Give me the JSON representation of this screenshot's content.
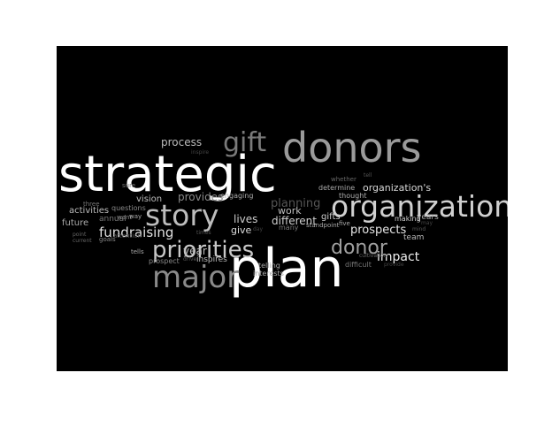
{
  "colors": {
    "background": "#000000",
    "page": "#ffffff"
  },
  "words": [
    {
      "text": "strategic",
      "color": "#ffffff"
    },
    {
      "text": "plan",
      "color": "#ffffff"
    },
    {
      "text": "donors",
      "color": "#9a9a9a"
    },
    {
      "text": "organization",
      "color": "#d0d0d0"
    },
    {
      "text": "story",
      "color": "#bdbdbd"
    },
    {
      "text": "priorities",
      "color": "#c8c8c8"
    },
    {
      "text": "major",
      "color": "#8a8a8a"
    },
    {
      "text": "gift",
      "color": "#7a7a7a"
    },
    {
      "text": "donor",
      "color": "#a0a0a0"
    },
    {
      "text": "fundraising",
      "color": "#e0e0e0"
    },
    {
      "text": "prospects",
      "color": "#e6e6e6"
    },
    {
      "text": "impact",
      "color": "#f0f0f0"
    },
    {
      "text": "planning",
      "color": "#555555"
    },
    {
      "text": "organization's",
      "color": "#d8d8d8"
    },
    {
      "text": "process",
      "color": "#bbbbbb"
    },
    {
      "text": "provides",
      "color": "#888888"
    },
    {
      "text": "year",
      "color": "#bbbbbb"
    },
    {
      "text": "lives",
      "color": "#cccccc"
    },
    {
      "text": "give",
      "color": "#dddddd"
    },
    {
      "text": "different",
      "color": "#cfcfcf"
    },
    {
      "text": "work",
      "color": "#bfbfbf"
    },
    {
      "text": "gifts",
      "color": "#cfcfcf"
    },
    {
      "text": "activities",
      "color": "#bbbbbb"
    },
    {
      "text": "future",
      "color": "#aaaaaa"
    },
    {
      "text": "vision",
      "color": "#bbbbbb"
    },
    {
      "text": "annual",
      "color": "#777777"
    },
    {
      "text": "inspires",
      "color": "#bdbdbd"
    },
    {
      "text": "team",
      "color": "#bbbbbb"
    },
    {
      "text": "years",
      "color": "#aaaaaa"
    },
    {
      "text": "making",
      "color": "#cccccc"
    },
    {
      "text": "engaging",
      "color": "#aaaaaa"
    },
    {
      "text": "determine",
      "color": "#aaaaaa"
    },
    {
      "text": "thought",
      "color": "#aaaaaa"
    },
    {
      "text": "whether",
      "color": "#666666"
    },
    {
      "text": "telling",
      "color": "#aaaaaa"
    },
    {
      "text": "interests",
      "color": "#aaaaaa"
    },
    {
      "text": "difficult",
      "color": "#777777"
    },
    {
      "text": "cultivation",
      "color": "#666666"
    },
    {
      "text": "prospect",
      "color": "#888888"
    },
    {
      "text": "questions",
      "color": "#888888"
    },
    {
      "text": "standpoint",
      "color": "#aaaaaa"
    },
    {
      "text": "five",
      "color": "#aaaaaa"
    },
    {
      "text": "many",
      "color": "#777777"
    },
    {
      "text": "three",
      "color": "#777777"
    },
    {
      "text": "want",
      "color": "#888888"
    },
    {
      "text": "way",
      "color": "#aaaaaa"
    },
    {
      "text": "sure",
      "color": "#777777"
    },
    {
      "text": "goals",
      "color": "#888888"
    },
    {
      "text": "point",
      "color": "#666666"
    },
    {
      "text": "current",
      "color": "#666666"
    },
    {
      "text": "tells",
      "color": "#aaaaaa"
    },
    {
      "text": "attention",
      "color": "#555555"
    },
    {
      "text": "drive",
      "color": "#555555"
    },
    {
      "text": "times",
      "color": "#555555"
    },
    {
      "text": "mind",
      "color": "#555555"
    },
    {
      "text": "may",
      "color": "#444444"
    },
    {
      "text": "tell",
      "color": "#555555"
    },
    {
      "text": "day",
      "color": "#444444"
    },
    {
      "text": "inspire",
      "color": "#444444"
    },
    {
      "text": "provide",
      "color": "#444444"
    }
  ]
}
